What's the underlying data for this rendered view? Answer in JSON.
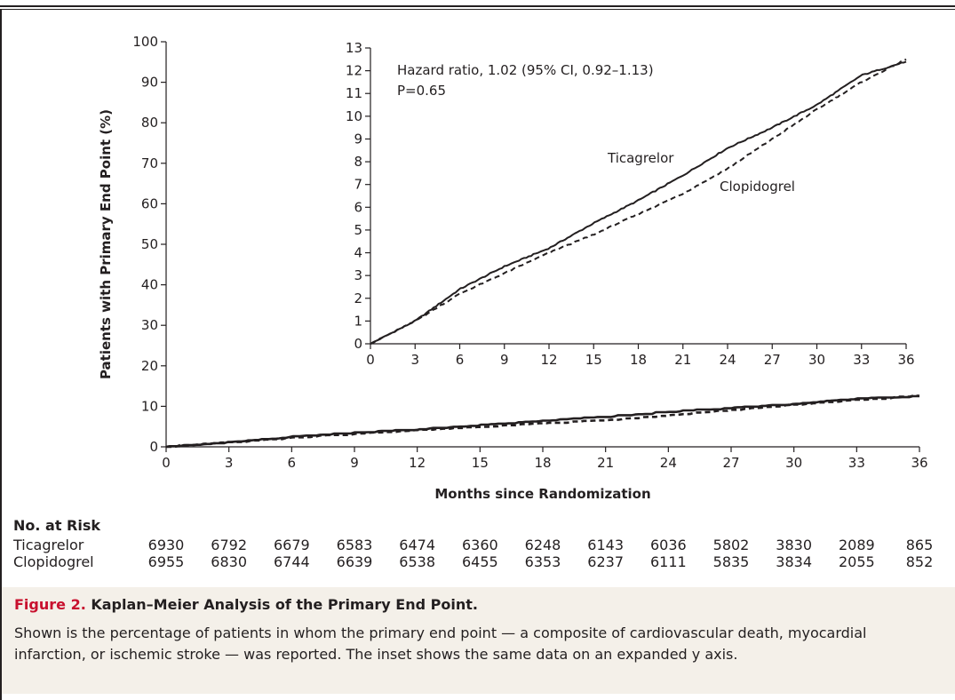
{
  "chart_data": [
    {
      "type": "line",
      "ylabel": "Patients with Primary End Point (%)",
      "xlabel": "Months since Randomization",
      "xlim": [
        0,
        36
      ],
      "ylim": [
        0,
        100
      ],
      "xticks": [
        0,
        3,
        6,
        9,
        12,
        15,
        18,
        21,
        24,
        27,
        30,
        33,
        36
      ],
      "yticks": [
        0,
        10,
        20,
        30,
        40,
        50,
        60,
        70,
        80,
        90,
        100
      ],
      "series": [
        {
          "name": "Ticagrelor",
          "style": "solid",
          "x": [
            0,
            3,
            6,
            9,
            12,
            15,
            18,
            21,
            24,
            27,
            30,
            33,
            36
          ],
          "y": [
            0,
            1.0,
            2.4,
            3.4,
            4.2,
            5.3,
            6.3,
            7.4,
            8.6,
            9.5,
            10.5,
            11.8,
            12.4
          ]
        },
        {
          "name": "Clopidogrel",
          "style": "dashed",
          "x": [
            0,
            3,
            6,
            9,
            12,
            15,
            18,
            21,
            24,
            27,
            30,
            33,
            36
          ],
          "y": [
            0,
            1.0,
            2.2,
            3.1,
            4.0,
            4.8,
            5.7,
            6.6,
            7.7,
            9.0,
            10.3,
            11.5,
            12.5
          ]
        }
      ]
    },
    {
      "type": "line",
      "inset": true,
      "xlim": [
        0,
        36
      ],
      "ylim": [
        0,
        13
      ],
      "xticks": [
        0,
        3,
        6,
        9,
        12,
        15,
        18,
        21,
        24,
        27,
        30,
        33,
        36
      ],
      "yticks": [
        0,
        1,
        2,
        3,
        4,
        5,
        6,
        7,
        8,
        9,
        10,
        11,
        12,
        13
      ],
      "annotation_line1": "Hazard ratio, 1.02 (95% CI, 0.92–1.13)",
      "annotation_line2": "P=0.65",
      "series": [
        {
          "name": "Ticagrelor",
          "style": "solid",
          "x": [
            0,
            3,
            6,
            9,
            12,
            15,
            18,
            21,
            24,
            27,
            30,
            33,
            36
          ],
          "y": [
            0,
            1.0,
            2.4,
            3.4,
            4.2,
            5.3,
            6.3,
            7.4,
            8.6,
            9.5,
            10.5,
            11.8,
            12.4
          ]
        },
        {
          "name": "Clopidogrel",
          "style": "dashed",
          "x": [
            0,
            3,
            6,
            9,
            12,
            15,
            18,
            21,
            24,
            27,
            30,
            33,
            36
          ],
          "y": [
            0,
            1.0,
            2.2,
            3.1,
            4.0,
            4.8,
            5.7,
            6.6,
            7.7,
            9.0,
            10.3,
            11.5,
            12.5
          ]
        }
      ]
    }
  ],
  "risk_table": {
    "title": "No. at Risk",
    "rows": [
      {
        "label": "Ticagrelor",
        "values": [
          "6930",
          "6792",
          "6679",
          "6583",
          "6474",
          "6360",
          "6248",
          "6143",
          "6036",
          "5802",
          "3830",
          "2089",
          "865"
        ]
      },
      {
        "label": "Clopidogrel",
        "values": [
          "6955",
          "6830",
          "6744",
          "6639",
          "6538",
          "6455",
          "6353",
          "6237",
          "6111",
          "5835",
          "3834",
          "2055",
          "852"
        ]
      }
    ]
  },
  "caption": {
    "figure_label": "Figure 2.",
    "title": "Kaplan–Meier Analysis of the Primary End Point.",
    "text": "Shown is the percentage of patients in whom the primary end point — a composite of cardiovascular death, myocardial infarction, or ischemic stroke — was reported. The inset shows the same data on an expanded y axis."
  },
  "colors": {
    "ink": "#231f20",
    "figure_label": "#c8102e",
    "caption_bg": "#f4f0e9"
  }
}
